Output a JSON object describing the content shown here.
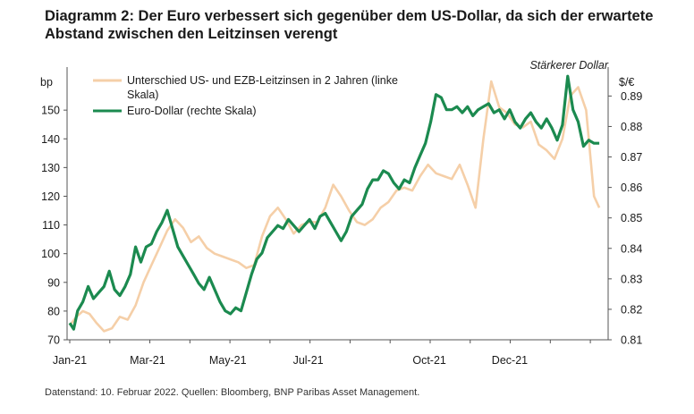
{
  "title": "Diagramm 2: Der Euro verbessert sich gegenüber dem US-Dollar, da sich der erwartete Abstand zwischen den Leitzinsen verengt",
  "footnote": "Datenstand: 10. Februar 2022. Quellen: Bloomberg, BNP Paribas Asset Management.",
  "chart_data": {
    "type": "line",
    "annotation": "Stärkerer Dollar",
    "left_axis": {
      "unit_label": "bp",
      "ylim": [
        70,
        165
      ],
      "ticks": [
        70,
        80,
        90,
        100,
        110,
        120,
        130,
        140,
        150
      ]
    },
    "right_axis": {
      "unit_label": "$/€",
      "ylim": [
        0.81,
        0.8995
      ],
      "ticks": [
        0.81,
        0.82,
        0.83,
        0.84,
        0.85,
        0.86,
        0.87,
        0.88,
        0.89
      ]
    },
    "x_axis": {
      "ticks": [
        "Jan-21",
        "Mar-21",
        "May-21",
        "Jul-21",
        "Oct-21",
        "Dec-21"
      ],
      "tick_dates": [
        0,
        59,
        120,
        181,
        273,
        334
      ],
      "xlim": [
        0,
        406
      ]
    },
    "legend": {
      "rate_spread": "Unterschied US- und EZB-Leitzinsen in 2 Jahren (linke",
      "rate_spread_cont": "Skala)",
      "eurusd": "Euro-Dollar (rechte Skala)"
    },
    "series": [
      {
        "name": "Unterschied US- und EZB-Leitzinsen in 2 Jahren (linke Skala)",
        "axis": "left",
        "color": "#f5cfa8",
        "x": [
          0,
          5,
          10,
          15,
          20,
          26,
          32,
          38,
          44,
          50,
          56,
          62,
          68,
          74,
          80,
          86,
          92,
          98,
          104,
          110,
          116,
          122,
          128,
          134,
          140,
          146,
          152,
          158,
          164,
          170,
          176,
          182,
          188,
          194,
          200,
          206,
          212,
          218,
          224,
          230,
          236,
          242,
          248,
          254,
          260,
          266,
          272,
          278,
          284,
          290,
          296,
          302,
          308,
          314,
          320,
          326,
          332,
          338,
          344,
          350,
          356,
          362,
          368,
          374,
          380,
          386,
          392,
          398,
          402
        ],
        "values": [
          75,
          78,
          80,
          79,
          76,
          73,
          74,
          78,
          77,
          82,
          90,
          96,
          102,
          108,
          112,
          109,
          104,
          106,
          102,
          100,
          99,
          98,
          97,
          95,
          96,
          106,
          113,
          116,
          112,
          107,
          110,
          111,
          111,
          116,
          124,
          120,
          115,
          111,
          110,
          112,
          116,
          118,
          122,
          123,
          122,
          127,
          131,
          128,
          127,
          126,
          131,
          124,
          116,
          140,
          160,
          151,
          149,
          145,
          144,
          146,
          138,
          136,
          133,
          140,
          155,
          158,
          150,
          120,
          116
        ]
      },
      {
        "name": "Euro-Dollar (rechte Skala)",
        "axis": "right",
        "color": "#1b8a4f",
        "x": [
          0,
          3,
          6,
          10,
          14,
          18,
          22,
          26,
          30,
          34,
          38,
          42,
          46,
          50,
          54,
          58,
          62,
          66,
          70,
          74,
          78,
          82,
          86,
          90,
          94,
          98,
          102,
          106,
          110,
          114,
          118,
          122,
          126,
          130,
          134,
          138,
          142,
          146,
          150,
          154,
          158,
          162,
          166,
          170,
          174,
          178,
          182,
          186,
          190,
          194,
          198,
          202,
          206,
          210,
          214,
          218,
          222,
          226,
          230,
          234,
          238,
          242,
          246,
          250,
          254,
          258,
          262,
          266,
          270,
          274,
          278,
          282,
          286,
          290,
          294,
          298,
          302,
          306,
          310,
          314,
          318,
          322,
          326,
          330,
          334,
          338,
          342,
          346,
          350,
          354,
          358,
          362,
          366,
          370,
          374,
          378,
          382,
          386,
          390,
          394,
          398,
          402
        ],
        "values": [
          0.8155,
          0.8135,
          0.8195,
          0.8225,
          0.8275,
          0.8235,
          0.8255,
          0.8275,
          0.8325,
          0.8265,
          0.8245,
          0.8275,
          0.8315,
          0.8405,
          0.8355,
          0.8405,
          0.8415,
          0.8455,
          0.8485,
          0.8525,
          0.8465,
          0.8405,
          0.8375,
          0.8345,
          0.8315,
          0.8285,
          0.8265,
          0.8305,
          0.8265,
          0.8225,
          0.8195,
          0.8185,
          0.8205,
          0.8195,
          0.8255,
          0.8315,
          0.8365,
          0.8385,
          0.8435,
          0.8455,
          0.8475,
          0.8465,
          0.8495,
          0.8475,
          0.8455,
          0.8475,
          0.8495,
          0.8465,
          0.8505,
          0.8515,
          0.8485,
          0.8455,
          0.8425,
          0.8455,
          0.8505,
          0.8525,
          0.8545,
          0.8595,
          0.8625,
          0.8625,
          0.8655,
          0.8645,
          0.8615,
          0.8595,
          0.8625,
          0.8615,
          0.8665,
          0.8705,
          0.8745,
          0.8815,
          0.8905,
          0.8895,
          0.8855,
          0.8855,
          0.8865,
          0.8845,
          0.8865,
          0.8835,
          0.8855,
          0.8865,
          0.8875,
          0.8845,
          0.8855,
          0.8825,
          0.8855,
          0.8815,
          0.8795,
          0.8825,
          0.8845,
          0.8815,
          0.8795,
          0.8825,
          0.8795,
          0.8755,
          0.8805,
          0.8965,
          0.8855,
          0.8815,
          0.8735,
          0.8755,
          0.8745,
          0.8745
        ]
      }
    ]
  }
}
